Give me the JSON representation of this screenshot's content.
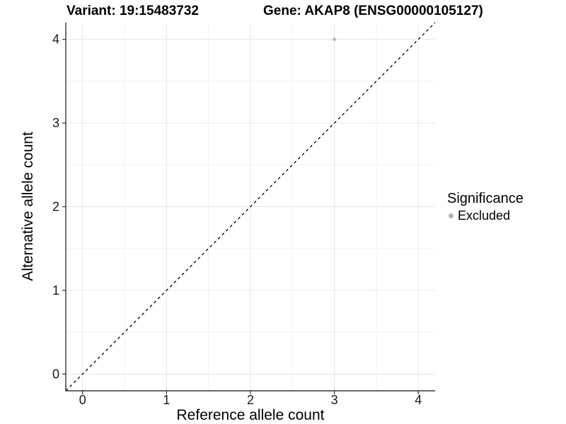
{
  "chart_data": {
    "type": "scatter",
    "title_left": "Variant: 19:15483732",
    "title_right": "Gene: AKAP8 (ENSG00000105127)",
    "xlabel": "Reference allele count",
    "ylabel": "Alternative allele count",
    "xlim": [
      -0.2,
      4.2
    ],
    "ylim": [
      -0.2,
      4.2
    ],
    "x_ticks": [
      0,
      1,
      2,
      3,
      4
    ],
    "y_ticks": [
      0,
      1,
      2,
      3,
      4
    ],
    "grid": {
      "show": true,
      "minor": true,
      "major_step": 1,
      "minor_step": 0.5
    },
    "reference_line": {
      "type": "identity",
      "from": [
        -0.2,
        -0.2
      ],
      "to": [
        4.2,
        4.2
      ],
      "style": "dashed",
      "color": "#000000"
    },
    "series": [
      {
        "name": "Excluded",
        "color": "#b3b3b3",
        "points": [
          {
            "x": 3,
            "y": 4
          }
        ]
      }
    ],
    "legend": {
      "title": "Significance",
      "position": "right",
      "items": [
        {
          "label": "Excluded",
          "color": "#b3b3b3"
        }
      ]
    },
    "style": {
      "background": "#ffffff",
      "grid_major": "#e6e6e6",
      "grid_minor": "#f2f2f2",
      "axis_color": "#333333",
      "tick_label_color": "#1a1a1a",
      "point_color": "#b3b3b3"
    }
  }
}
